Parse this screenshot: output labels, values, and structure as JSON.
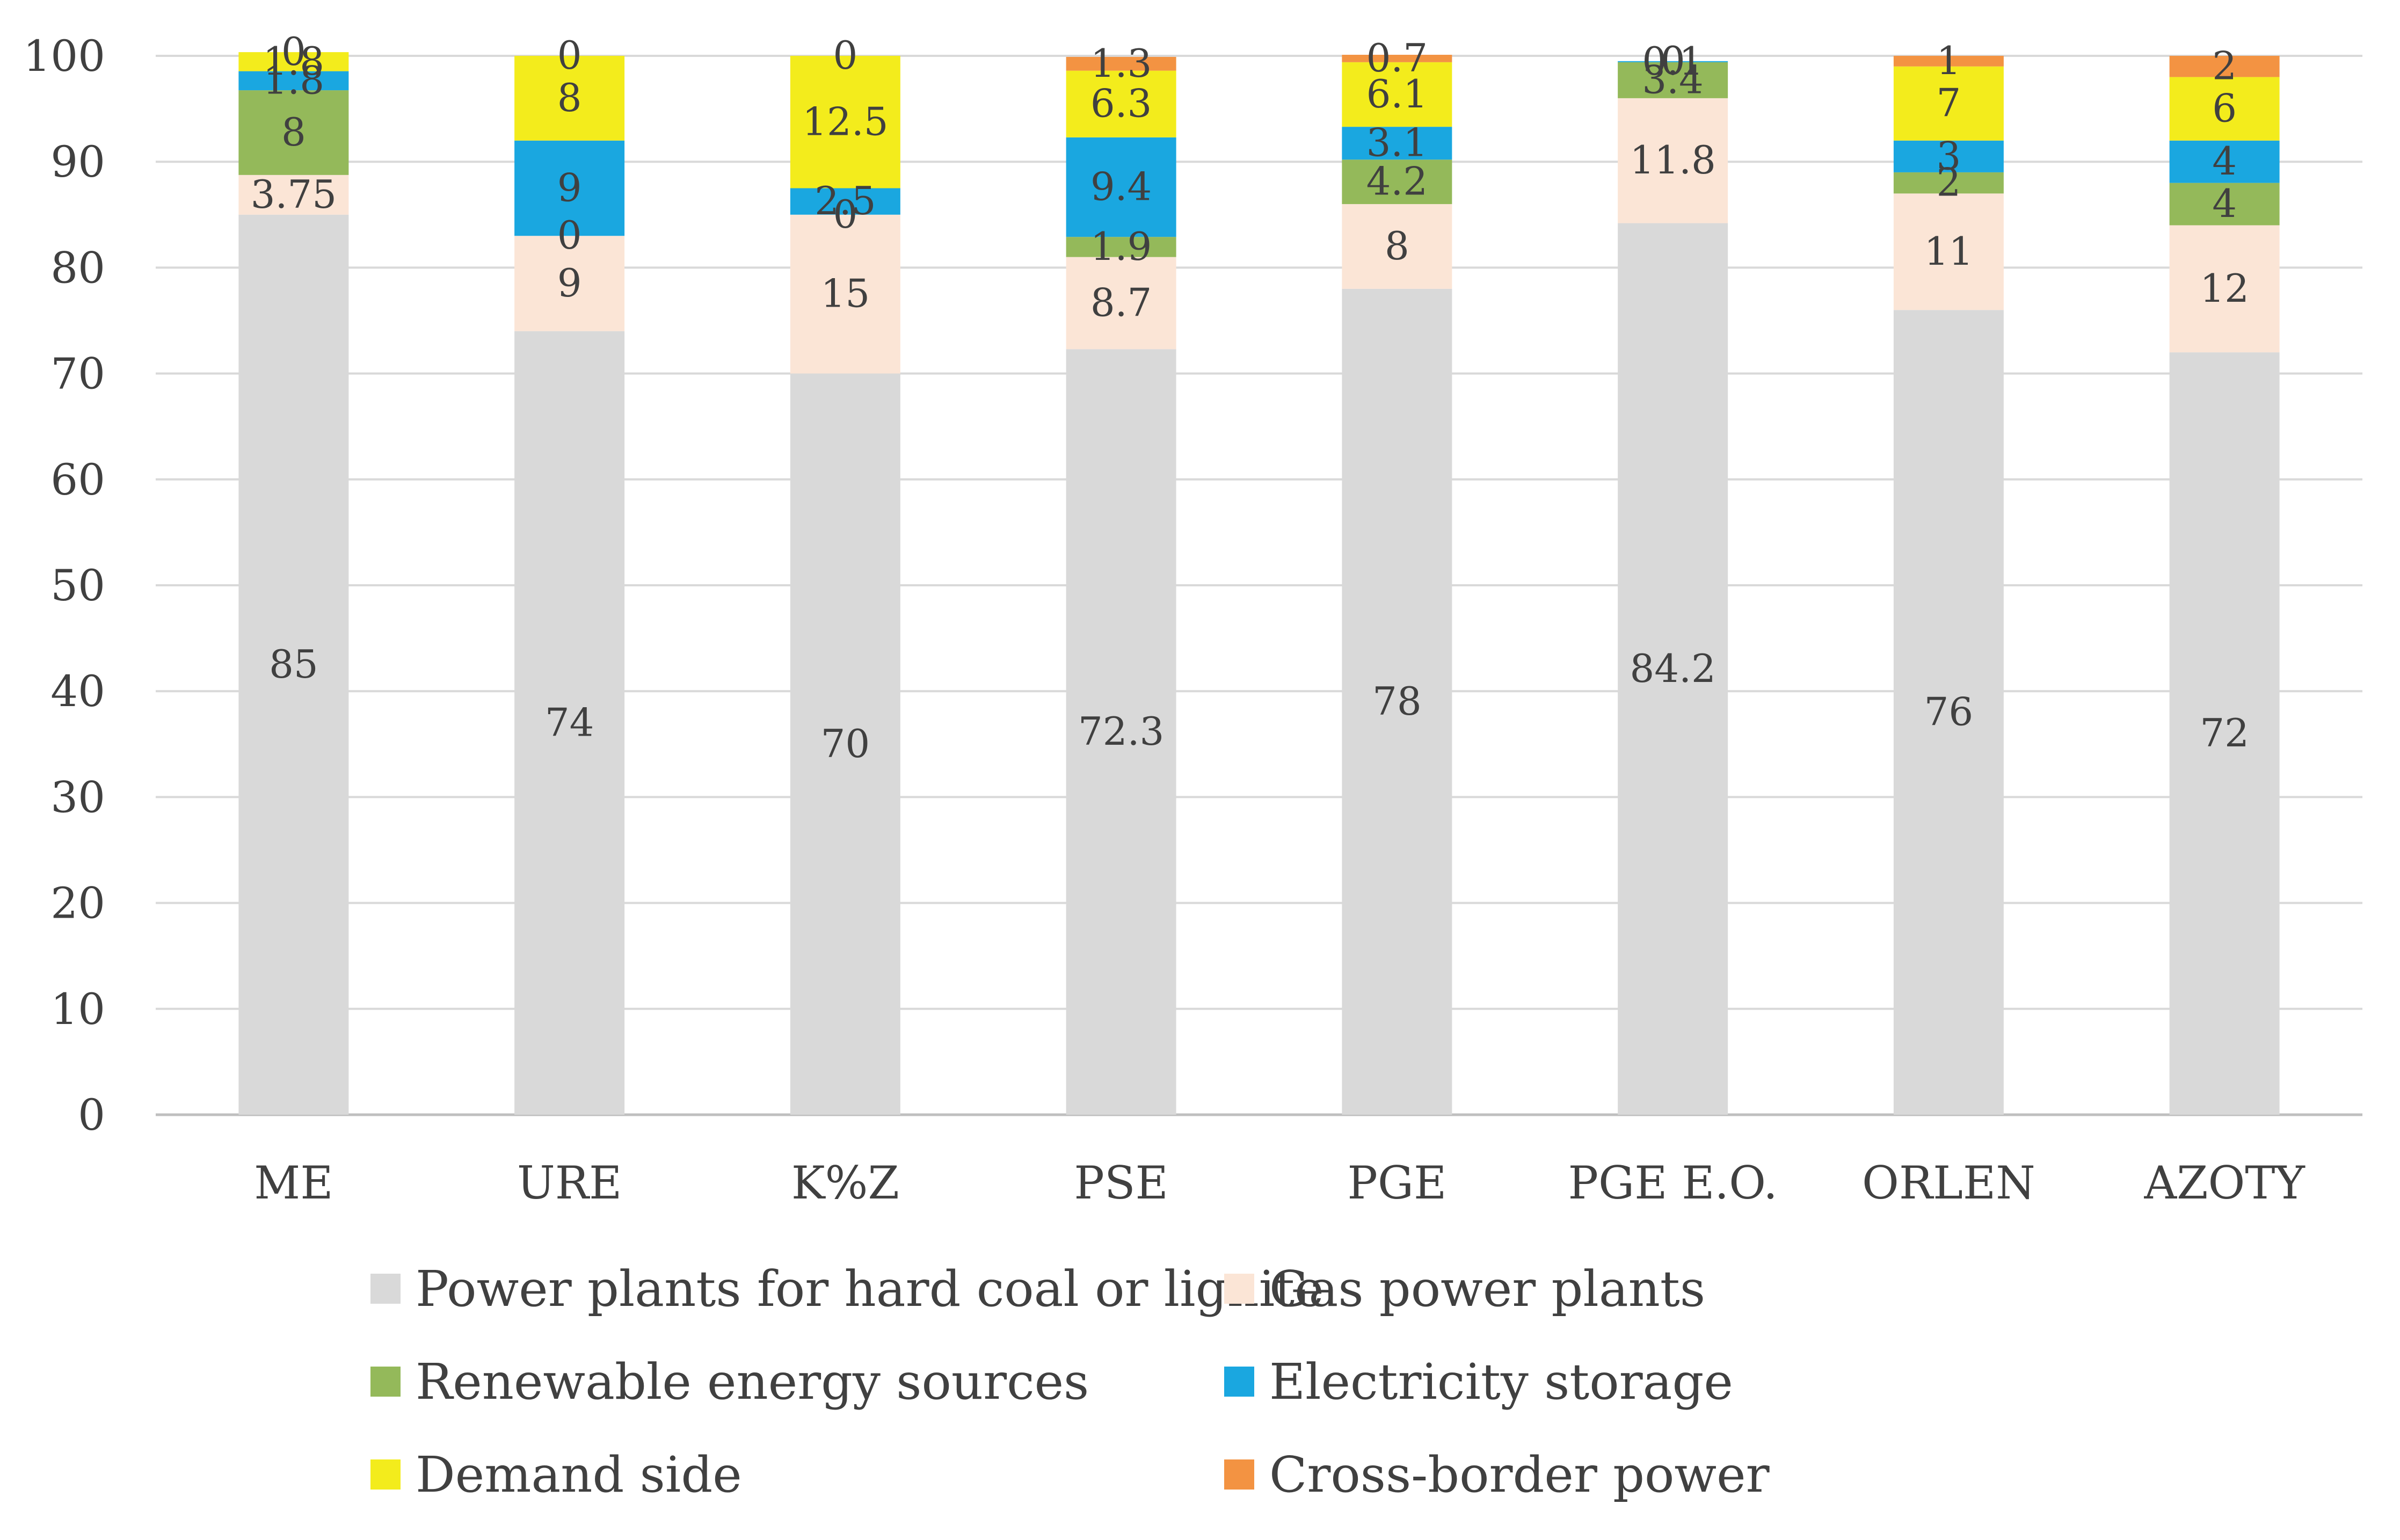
{
  "chart_data": {
    "type": "bar",
    "stacked": true,
    "title": "",
    "xlabel": "",
    "ylabel": "",
    "ylim": [
      0,
      100
    ],
    "yticks": [
      0,
      10,
      20,
      30,
      40,
      50,
      60,
      70,
      80,
      90,
      100
    ],
    "grid": true,
    "legend_position": "bottom",
    "categories": [
      "ME",
      "URE",
      "K%Z",
      "PSE",
      "PGE",
      "PGE E.O.",
      "ORLEN",
      "AZOTY"
    ],
    "series": [
      {
        "name": "Power plants for hard coal or lignite",
        "color": "#d9d9d9",
        "values": [
          85,
          74,
          70,
          72.3,
          78,
          84.2,
          76,
          72
        ],
        "labels": [
          "85",
          "74",
          "70",
          "72.3",
          "78",
          "84.2",
          "76",
          "72"
        ]
      },
      {
        "name": "Gas power plants",
        "color": "#fbe5d6",
        "values": [
          3.75,
          9,
          15,
          8.7,
          8,
          11.8,
          11,
          12
        ],
        "labels": [
          "3.75",
          "9",
          "15",
          "8.7",
          "8",
          "11.8",
          "11",
          "12"
        ]
      },
      {
        "name": "Renewable energy sources",
        "color": "#94b95a",
        "values": [
          8,
          0,
          0,
          1.9,
          4.2,
          3.4,
          2,
          4
        ],
        "labels": [
          "8",
          "0",
          "0",
          "1.9",
          "4.2",
          "3.4",
          "2",
          "4"
        ]
      },
      {
        "name": "Electricity storage",
        "color": "#1aa7e0",
        "values": [
          1.8,
          9,
          2.5,
          9.4,
          3.1,
          0.1,
          3,
          4
        ],
        "labels": [
          "1.8",
          "9",
          "2.5",
          "9.4",
          "3.1",
          "0.1",
          "3",
          "4"
        ]
      },
      {
        "name": "Demand side",
        "color": "#f3ec1c",
        "values": [
          1.8,
          8,
          12.5,
          6.3,
          6.1,
          0,
          7,
          6
        ],
        "labels": [
          "1.8",
          "8",
          "12.5",
          "6.3",
          "6.1",
          "0",
          "7",
          "6"
        ]
      },
      {
        "name": "Cross-border power",
        "color": "#f39342",
        "values": [
          0,
          0,
          0,
          1.3,
          0.7,
          0,
          1,
          2
        ],
        "labels": [
          "0",
          "0",
          "0",
          "1.3",
          "0.7",
          "0",
          "1",
          "2"
        ]
      }
    ]
  }
}
